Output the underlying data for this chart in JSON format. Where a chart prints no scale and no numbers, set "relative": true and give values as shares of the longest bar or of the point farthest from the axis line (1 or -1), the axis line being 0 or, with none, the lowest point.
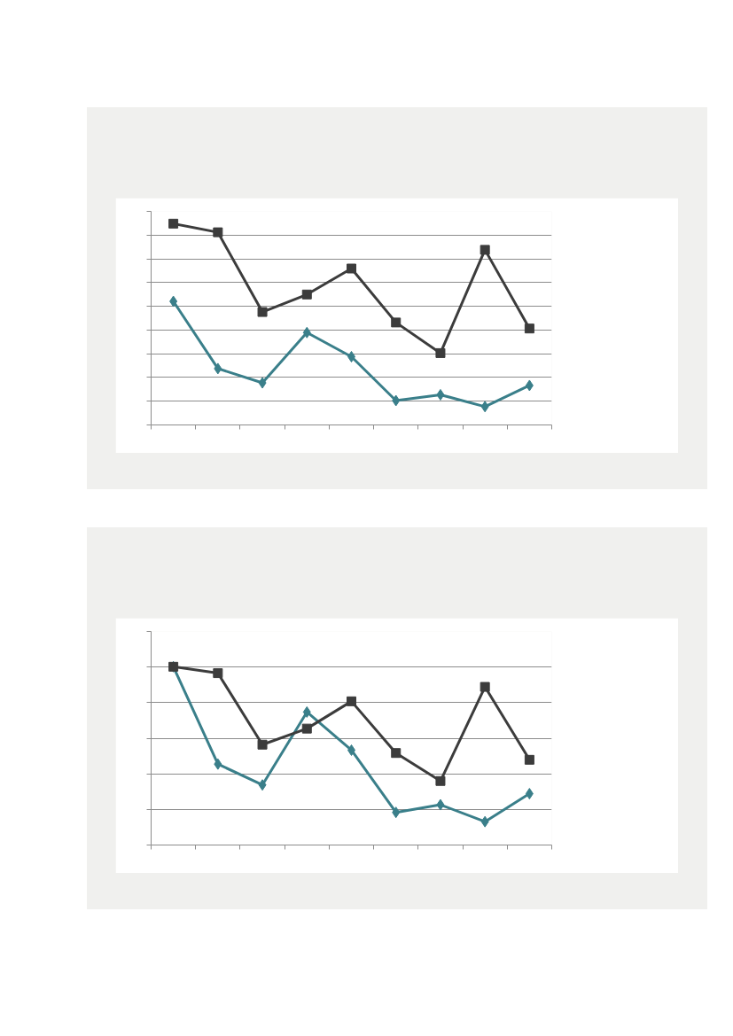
{
  "chart_data": [
    {
      "type": "line",
      "relative": true,
      "categories": [
        null,
        null,
        null,
        null,
        null,
        null,
        null,
        null,
        null
      ],
      "line_style": "solid",
      "grid": "y",
      "series": [
        {
          "color": "#3a7f8a",
          "marker": "diamond",
          "values": [
            0.614,
            0.28,
            0.209,
            0.459,
            0.339,
            0.121,
            0.15,
            0.091,
            0.196
          ]
        },
        {
          "color": "#3c3c3c",
          "marker": "square",
          "values": [
            1,
            0.957,
            0.561,
            0.648,
            0.777,
            0.509,
            0.357,
            0.87,
            0.479
          ]
        }
      ]
    },
    {
      "type": "line",
      "relative": true,
      "categories": [
        null,
        null,
        null,
        null,
        null,
        null,
        null,
        null,
        null
      ],
      "line_style": "solid",
      "grid": "y",
      "series": [
        {
          "color": "#3a7f8a",
          "marker": "diamond",
          "values": [
            1,
            0.454,
            0.337,
            0.746,
            0.532,
            0.183,
            0.226,
            0.131,
            0.288
          ]
        },
        {
          "color": "#3c3c3c",
          "marker": "square",
          "values": [
            1,
            0.964,
            0.563,
            0.653,
            0.806,
            0.516,
            0.359,
            0.887,
            0.478
          ]
        }
      ]
    }
  ]
}
